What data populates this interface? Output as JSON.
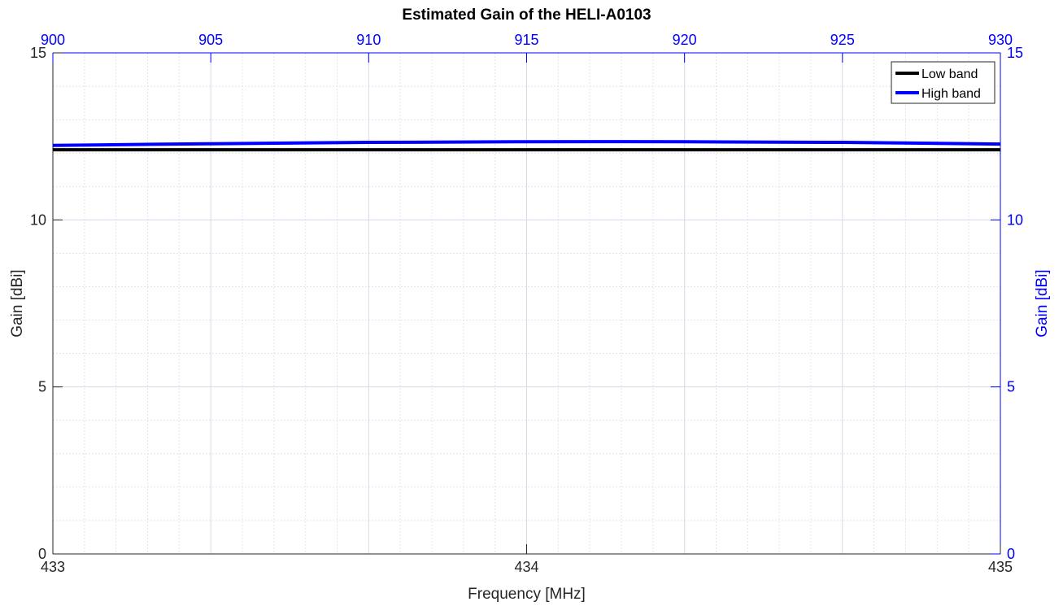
{
  "chart_data": {
    "type": "line",
    "title": "Estimated Gain of the HELI-A0103",
    "xlabel": "Frequency [MHz]",
    "ylabel": "Gain [dBi]",
    "ylabel_right": "Gain [dBi]",
    "grid": true,
    "minor_grid": true,
    "legend_position": "top-right",
    "x_bottom": {
      "range": [
        433,
        435
      ],
      "ticks": [
        433,
        434,
        435
      ],
      "tick_labels": [
        "433",
        "434",
        "435"
      ],
      "color": "#262626"
    },
    "x_top": {
      "range": [
        900,
        930
      ],
      "ticks": [
        900,
        905,
        910,
        915,
        920,
        925,
        930
      ],
      "tick_labels": [
        "900",
        "905",
        "910",
        "915",
        "920",
        "925",
        "930"
      ],
      "color": "#0000ff"
    },
    "y_left": {
      "range": [
        0,
        15
      ],
      "ticks": [
        0,
        5,
        10,
        15
      ],
      "tick_labels": [
        "0",
        "5",
        "10",
        "15"
      ],
      "color": "#262626"
    },
    "y_right": {
      "range": [
        0,
        15
      ],
      "ticks": [
        0,
        5,
        10,
        15
      ],
      "tick_labels": [
        "0",
        "5",
        "10",
        "15"
      ],
      "color": "#0000ff"
    },
    "series": [
      {
        "name": "Low band",
        "axis": "bottom",
        "color": "#000000",
        "x": [
          433,
          433.5,
          434,
          434.5,
          435
        ],
        "y": [
          12.1,
          12.1,
          12.1,
          12.1,
          12.1
        ]
      },
      {
        "name": "High band",
        "axis": "top",
        "color": "#0000ff",
        "x": [
          900,
          905,
          910,
          915,
          920,
          925,
          930
        ],
        "y": [
          12.23,
          12.28,
          12.32,
          12.34,
          12.34,
          12.32,
          12.27
        ]
      }
    ]
  }
}
